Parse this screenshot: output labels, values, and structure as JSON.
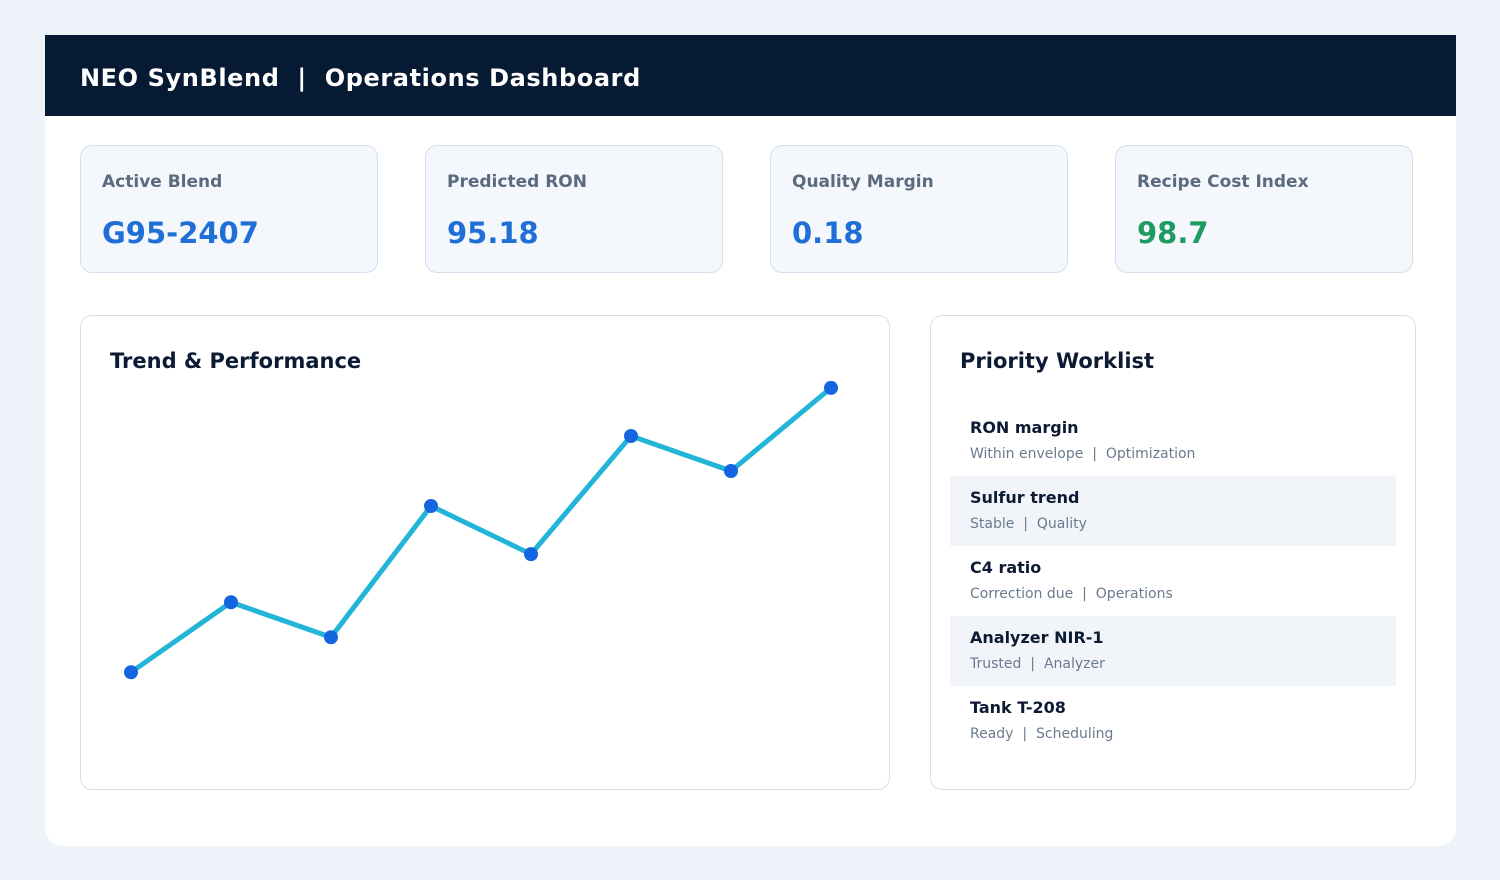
{
  "header": {
    "title": "NEO SynBlend  |  Operations Dashboard"
  },
  "kpis": [
    {
      "label": "Active Blend",
      "value": "G95-2407",
      "color": "#1f6fd6"
    },
    {
      "label": "Predicted RON",
      "value": "95.18",
      "color": "#1f6fd6"
    },
    {
      "label": "Quality Margin",
      "value": "0.18",
      "color": "#1f6fd6"
    },
    {
      "label": "Recipe Cost Index",
      "value": "98.7",
      "color": "#1f9a63"
    }
  ],
  "trend": {
    "title": "Trend & Performance",
    "chart_data": {
      "type": "line",
      "x": [
        1,
        2,
        3,
        4,
        5,
        6,
        7,
        8
      ],
      "series": [
        {
          "values": [
            10,
            26,
            18,
            48,
            37,
            64,
            56,
            75
          ]
        }
      ],
      "ylim": [
        0,
        80
      ],
      "grid": false,
      "line_color": "#22b5d8",
      "point_color": "#1565e0"
    }
  },
  "worklist": {
    "title": "Priority Worklist",
    "items": [
      {
        "name": "RON margin",
        "status": "Within envelope",
        "category": "Optimization"
      },
      {
        "name": "Sulfur trend",
        "status": "Stable",
        "category": "Quality"
      },
      {
        "name": "C4 ratio",
        "status": "Correction due",
        "category": "Operations"
      },
      {
        "name": "Analyzer NIR-1",
        "status": "Trusted",
        "category": "Analyzer"
      },
      {
        "name": "Tank T-208",
        "status": "Ready",
        "category": "Scheduling"
      }
    ]
  }
}
